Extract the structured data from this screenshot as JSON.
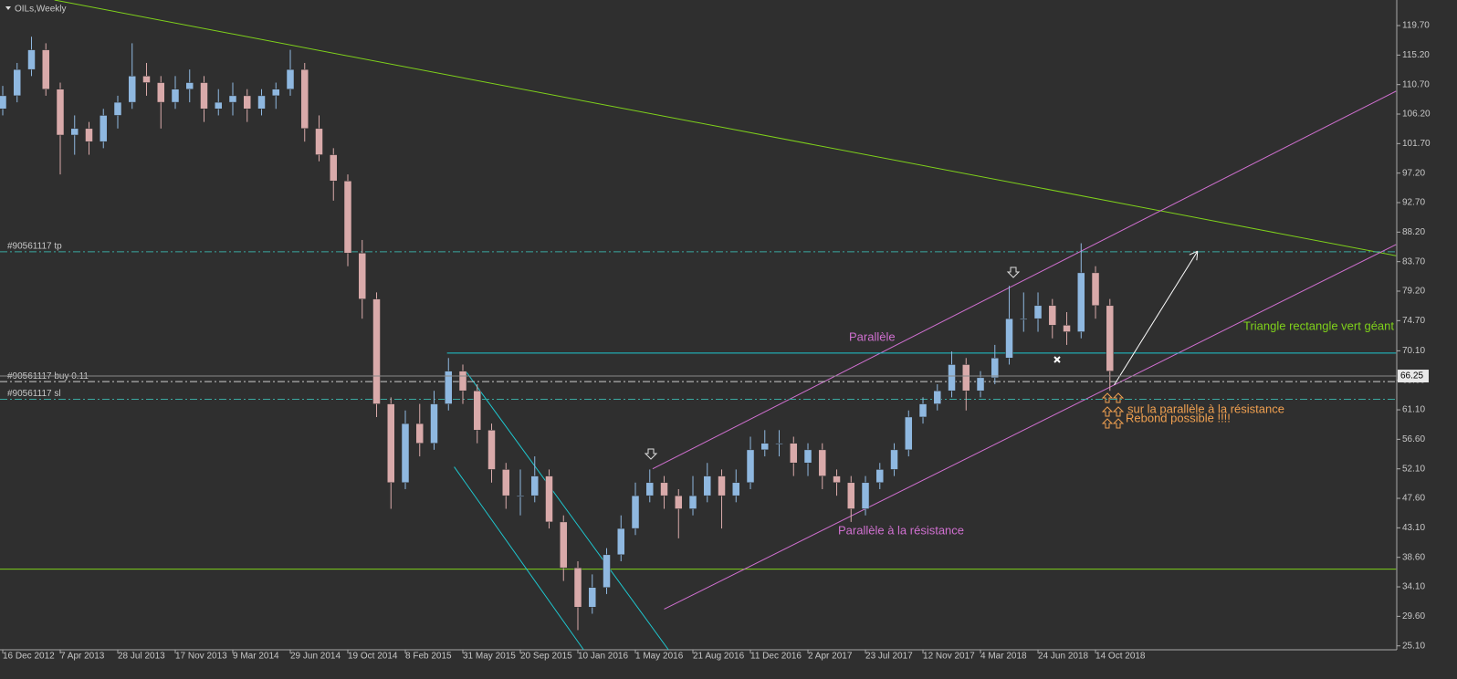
{
  "chart_data": {
    "type": "candlestick",
    "title": "OILs,Weekly",
    "up_color": "#8fb8e0",
    "down_color": "#d9aaaa",
    "xlim": [
      -0.19,
      96.95
    ],
    "ylim": [
      24.5,
      123.6
    ],
    "xticks": [
      {
        "value": 0,
        "label": "16 Dec 2012"
      },
      {
        "value": 4,
        "label": "7 Apr 2013"
      },
      {
        "value": 8,
        "label": "28 Jul 2013"
      },
      {
        "value": 12,
        "label": "17 Nov 2013"
      },
      {
        "value": 16,
        "label": "9 Mar 2014"
      },
      {
        "value": 20,
        "label": "29 Jun 2014"
      },
      {
        "value": 24,
        "label": "19 Oct 2014"
      },
      {
        "value": 28,
        "label": "8 Feb 2015"
      },
      {
        "value": 32,
        "label": "31 May 2015"
      },
      {
        "value": 36,
        "label": "20 Sep 2015"
      },
      {
        "value": 40,
        "label": "10 Jan 2016"
      },
      {
        "value": 44,
        "label": "1 May 2016"
      },
      {
        "value": 48,
        "label": "21 Aug 2016"
      },
      {
        "value": 52,
        "label": "11 Dec 2016"
      },
      {
        "value": 56,
        "label": "2 Apr 2017"
      },
      {
        "value": 60,
        "label": "23 Jul 2017"
      },
      {
        "value": 64,
        "label": "12 Nov 2017"
      },
      {
        "value": 68,
        "label": "4 Mar 2018"
      },
      {
        "value": 72,
        "label": "24 Jun 2018"
      },
      {
        "value": 76,
        "label": "14 Oct 2018"
      }
    ],
    "yticks": [
      {
        "value": 119.7,
        "label": "119.70"
      },
      {
        "value": 115.2,
        "label": "115.20"
      },
      {
        "value": 110.7,
        "label": "110.70"
      },
      {
        "value": 106.2,
        "label": "106.20"
      },
      {
        "value": 101.7,
        "label": "101.70"
      },
      {
        "value": 97.2,
        "label": "97.20"
      },
      {
        "value": 92.7,
        "label": "92.70"
      },
      {
        "value": 88.2,
        "label": "88.20"
      },
      {
        "value": 83.7,
        "label": "83.70"
      },
      {
        "value": 79.2,
        "label": "79.20"
      },
      {
        "value": 74.7,
        "label": "74.70"
      },
      {
        "value": 70.1,
        "label": "70.10"
      },
      {
        "value": 65.6,
        "label": "65.60"
      },
      {
        "value": 61.1,
        "label": "61.10"
      },
      {
        "value": 56.6,
        "label": "56.60"
      },
      {
        "value": 52.1,
        "label": "52.10"
      },
      {
        "value": 47.6,
        "label": "47.60"
      },
      {
        "value": 43.1,
        "label": "43.10"
      },
      {
        "value": 38.6,
        "label": "38.60"
      },
      {
        "value": 34.1,
        "label": "34.10"
      },
      {
        "value": 29.6,
        "label": "29.60"
      },
      {
        "value": 25.1,
        "label": "25.10"
      }
    ],
    "ohlc": [
      [
        107,
        110.5,
        106,
        109
      ],
      [
        109,
        114,
        108,
        113
      ],
      [
        113,
        118,
        112,
        116
      ],
      [
        116,
        117,
        109,
        110
      ],
      [
        110,
        111,
        97,
        103
      ],
      [
        103,
        106,
        100,
        104
      ],
      [
        104,
        105,
        100,
        102
      ],
      [
        102,
        107,
        101,
        106
      ],
      [
        106,
        109,
        104,
        108
      ],
      [
        108,
        117,
        107,
        112
      ],
      [
        112,
        114,
        109,
        111
      ],
      [
        111,
        112,
        104,
        108
      ],
      [
        108,
        112,
        107,
        110
      ],
      [
        110,
        113,
        108,
        111
      ],
      [
        111,
        112,
        105,
        107
      ],
      [
        107,
        110,
        106,
        108
      ],
      [
        108,
        111,
        106,
        109
      ],
      [
        109,
        110,
        105,
        107
      ],
      [
        107,
        110,
        106,
        109
      ],
      [
        109,
        111,
        107,
        110
      ],
      [
        110,
        116,
        109,
        113
      ],
      [
        113,
        114,
        102,
        104
      ],
      [
        104,
        106,
        99,
        100
      ],
      [
        100,
        101,
        93,
        96
      ],
      [
        96,
        97,
        83,
        85
      ],
      [
        85,
        87,
        75,
        78
      ],
      [
        78,
        79,
        60,
        62
      ],
      [
        62,
        63,
        46,
        50
      ],
      [
        50,
        61,
        49,
        59
      ],
      [
        59,
        62,
        54,
        56
      ],
      [
        56,
        64,
        55,
        62
      ],
      [
        62,
        69,
        61,
        67
      ],
      [
        67,
        68,
        62,
        64
      ],
      [
        64,
        65,
        56,
        58
      ],
      [
        58,
        59,
        50,
        52
      ],
      [
        52,
        53,
        46,
        48
      ],
      [
        48,
        52,
        45,
        48
      ],
      [
        48,
        54,
        47,
        51
      ],
      [
        51,
        52,
        43,
        44
      ],
      [
        44,
        45,
        35,
        37
      ],
      [
        37,
        38,
        27.5,
        31
      ],
      [
        31,
        36,
        30,
        34
      ],
      [
        34,
        40,
        33,
        39
      ],
      [
        39,
        45,
        38,
        43
      ],
      [
        43,
        50,
        42,
        48
      ],
      [
        48,
        52,
        47,
        50
      ],
      [
        50,
        51,
        46,
        48
      ],
      [
        48,
        49,
        41.5,
        46
      ],
      [
        46,
        51,
        45,
        48
      ],
      [
        48,
        53,
        47,
        51
      ],
      [
        51,
        52,
        43,
        48
      ],
      [
        48,
        52,
        47,
        50
      ],
      [
        50,
        57,
        49,
        55
      ],
      [
        55,
        58,
        54,
        56
      ],
      [
        56,
        58,
        54,
        56
      ],
      [
        56,
        57,
        51,
        53
      ],
      [
        53,
        56,
        51,
        55
      ],
      [
        55,
        56,
        49,
        51
      ],
      [
        51,
        52,
        48,
        50
      ],
      [
        50,
        51,
        44,
        46
      ],
      [
        46,
        51,
        45,
        50
      ],
      [
        50,
        53,
        49,
        52
      ],
      [
        52,
        56,
        51,
        55
      ],
      [
        55,
        61,
        54,
        60
      ],
      [
        60,
        63,
        59,
        62
      ],
      [
        62,
        65,
        61,
        64
      ],
      [
        64,
        70,
        63,
        68
      ],
      [
        68,
        69,
        61,
        64
      ],
      [
        64,
        67,
        63,
        66
      ],
      [
        66,
        71,
        65,
        69
      ],
      [
        69,
        80,
        68,
        75
      ],
      [
        75,
        79,
        73,
        75
      ],
      [
        75,
        79,
        73,
        77
      ],
      [
        77,
        78,
        72,
        74
      ],
      [
        74,
        76,
        71,
        73
      ],
      [
        73,
        86.5,
        72,
        82
      ],
      [
        82,
        83,
        75,
        77
      ],
      [
        77,
        78,
        64,
        67
      ]
    ],
    "current_price": {
      "value": 66.25,
      "label": "66.25"
    },
    "orders": [
      {
        "label": "#90561117 tp",
        "value": 85.2,
        "color": "#3aa8a0"
      },
      {
        "label": "#90561117 buy 0.11",
        "value": 65.4,
        "color": "#cccccc"
      },
      {
        "label": "#90561117 sl",
        "value": 62.7,
        "color": "#3aa8a0"
      }
    ],
    "lines": [
      {
        "color": "#7fd11b",
        "points": [
          [
            3.6,
            123.6
          ],
          [
            96.9,
            84.6
          ]
        ]
      },
      {
        "color": "#7fd11b",
        "points": [
          [
            -0.19,
            36.8
          ],
          [
            96.9,
            36.8
          ]
        ]
      },
      {
        "color": "#d070d0",
        "points": [
          [
            45.2,
            52.1
          ],
          [
            96.9,
            109.7
          ]
        ]
      },
      {
        "color": "#d070d0",
        "points": [
          [
            46.0,
            30.7
          ],
          [
            96.9,
            86.3
          ]
        ]
      },
      {
        "color": "#1ec8d0",
        "points": [
          [
            32.2,
            67.0
          ],
          [
            46.3,
            24.5
          ]
        ]
      },
      {
        "color": "#1ec8d0",
        "points": [
          [
            31.4,
            52.4
          ],
          [
            40.4,
            24.5
          ]
        ]
      },
      {
        "color": "#1ec8d0",
        "points": [
          [
            30.9,
            69.75
          ],
          [
            96.9,
            69.75
          ]
        ]
      },
      {
        "color": "#ffffff",
        "points": [
          [
            77.3,
            64.9
          ],
          [
            83.1,
            85.3
          ]
        ]
      }
    ],
    "annotations": [
      {
        "text": "Parallèle",
        "color": "#d070d0"
      },
      {
        "text": "Parallèle à la résistance",
        "color": "#d070d0"
      },
      {
        "text": "Triangle rectangle vert géant",
        "color": "#7fd11b"
      },
      {
        "text": "Rebond possible !!!!",
        "color": "#f0a050"
      },
      {
        "text": "sur la parallèle à la résistance",
        "color": "#f0a050"
      }
    ]
  }
}
